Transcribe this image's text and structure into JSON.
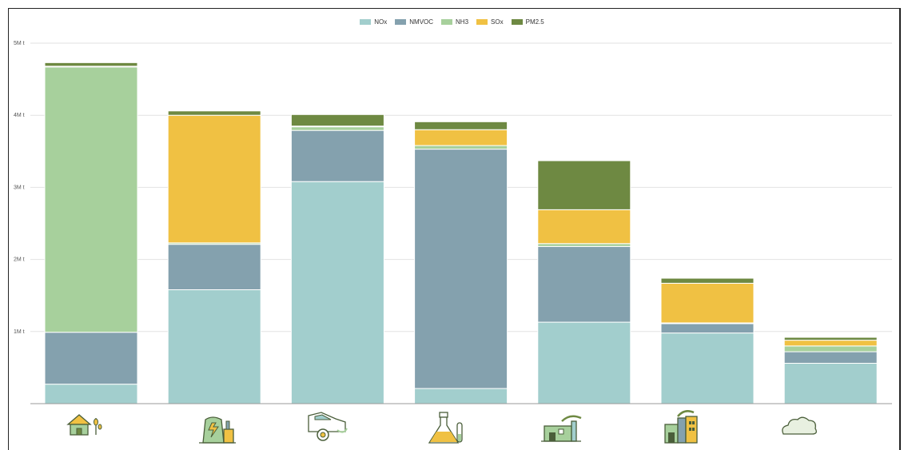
{
  "chart_data": {
    "type": "bar",
    "stacked": true,
    "categories": [
      "Agriculture",
      "Energy",
      "Transport",
      "Solvents",
      "Industry",
      "Industrial processes",
      "Other"
    ],
    "category_icons": [
      "farm-icon",
      "power-plant-icon",
      "car-icon",
      "flask-icon",
      "factory-icon",
      "industrial-building-icon",
      "cloud-icon"
    ],
    "series": [
      {
        "name": "NOx",
        "color": "#a2cecd",
        "values": [
          0.27,
          1.58,
          3.08,
          0.21,
          1.13,
          0.98,
          0.56
        ]
      },
      {
        "name": "NMVOC",
        "color": "#84a1ae",
        "values": [
          0.72,
          0.63,
          0.71,
          3.32,
          1.05,
          0.13,
          0.16
        ]
      },
      {
        "name": "NH3",
        "color": "#a7d09c",
        "values": [
          3.68,
          0.02,
          0.05,
          0.05,
          0.04,
          0.01,
          0.08
        ]
      },
      {
        "name": "SOx",
        "color": "#f0c143",
        "values": [
          0.01,
          1.77,
          0.01,
          0.22,
          0.47,
          0.55,
          0.08
        ]
      },
      {
        "name": "PM2.5",
        "color": "#6e8942",
        "values": [
          0.05,
          0.06,
          0.16,
          0.11,
          0.68,
          0.07,
          0.04
        ]
      }
    ],
    "yticks": [
      {
        "value": 1,
        "label": "1M t"
      },
      {
        "value": 2,
        "label": "2M t"
      },
      {
        "value": 3,
        "label": "3M t"
      },
      {
        "value": 4,
        "label": "4M t"
      },
      {
        "value": 5,
        "label": "5M t"
      }
    ],
    "ylim": [
      0,
      5
    ],
    "grid": true,
    "legend": "top-center",
    "title": "",
    "xlabel": "",
    "ylabel": ""
  }
}
